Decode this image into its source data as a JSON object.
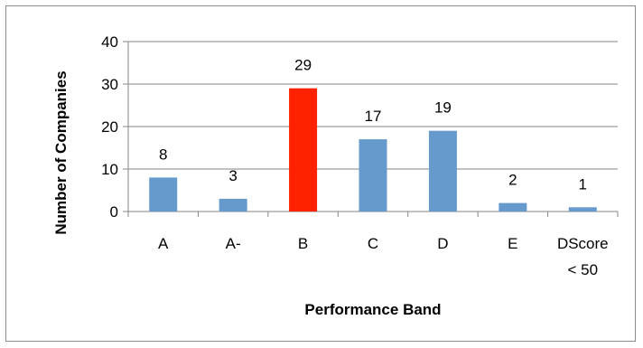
{
  "chart_data": {
    "type": "bar",
    "categories": [
      [
        "A"
      ],
      [
        "A-"
      ],
      [
        "B"
      ],
      [
        "C"
      ],
      [
        "D"
      ],
      [
        "E"
      ],
      [
        "DScore",
        "< 50"
      ]
    ],
    "values": [
      8,
      3,
      29,
      17,
      19,
      2,
      1
    ],
    "data_labels": [
      "8",
      "3",
      "29",
      "17",
      "19",
      "2",
      "1"
    ],
    "highlight_index": 2,
    "title": "",
    "xlabel": "Performance Band",
    "ylabel": "Number of Companies",
    "ylim": [
      0,
      40
    ],
    "yticks": [
      0,
      10,
      20,
      30,
      40
    ],
    "grid": true,
    "legend": "none"
  },
  "colors": {
    "bar": "#6699cc",
    "highlight": "#ff2200",
    "grid": "#868686",
    "axis": "#868686"
  }
}
